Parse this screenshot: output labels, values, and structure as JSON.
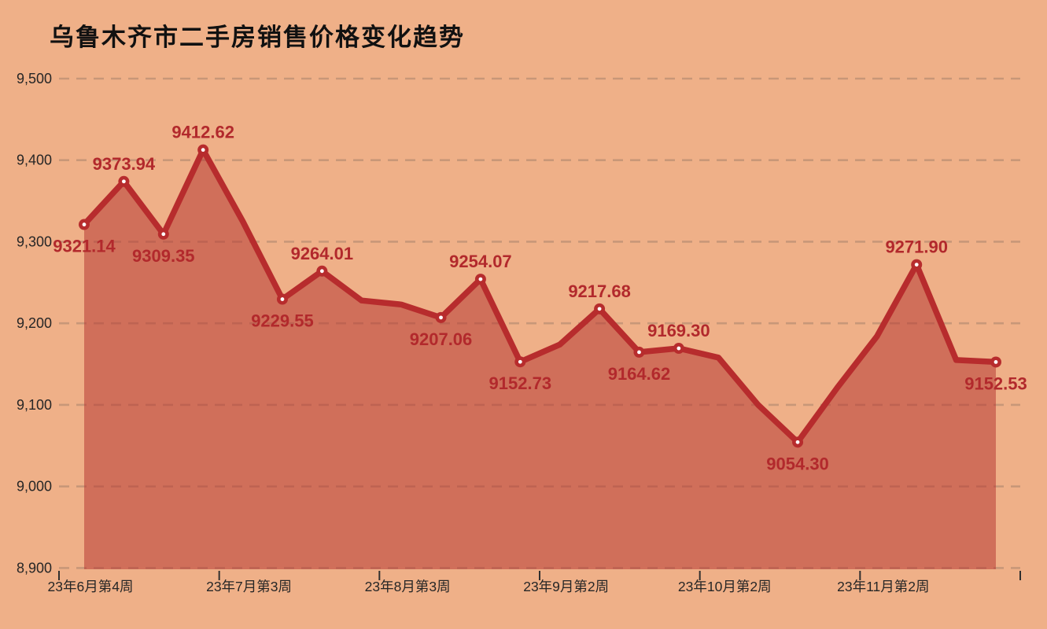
{
  "title": "乌鲁木齐市二手房销售价格变化趋势",
  "colors": {
    "background": "#efb088",
    "line": "#b72c2d",
    "area_fill": "#b5342f",
    "area_opacity": 0.52,
    "point_label": "#b2292c",
    "marker_center": "#ffffff",
    "grid": "#8a6f5f",
    "axis_text": "#262626",
    "tick": "#2f2f2f",
    "title_text": "#111111"
  },
  "chart_data": {
    "type": "area",
    "title": "乌鲁木齐市二手房销售价格变化趋势",
    "xlabel": "",
    "ylabel": "",
    "ylim": [
      8900,
      9500
    ],
    "grid": "dashed-horizontal",
    "legend": "none",
    "y_ticks": [
      {
        "label": "9,500",
        "value": 9500
      },
      {
        "label": "9,400",
        "value": 9400
      },
      {
        "label": "9,300",
        "value": 9300
      },
      {
        "label": "9,200",
        "value": 9200
      },
      {
        "label": "9,100",
        "value": 9100
      },
      {
        "label": "9,000",
        "value": 9000
      },
      {
        "label": "8,900",
        "value": 8900
      }
    ],
    "x_tick_labels": [
      "23年6月第4周",
      "23年7月第3周",
      "23年8月第3周",
      "23年9月第2周",
      "23年10月第2周",
      "23年11月第2周"
    ],
    "x_tick_point_index": [
      0,
      4,
      8,
      12,
      16,
      20
    ],
    "points": [
      {
        "value": 9321.14,
        "label": "9321.14",
        "label_pos": "below"
      },
      {
        "value": 9373.94,
        "label": "9373.94",
        "label_pos": "above"
      },
      {
        "value": 9309.35,
        "label": "9309.35",
        "label_pos": "below"
      },
      {
        "value": 9412.62,
        "label": "9412.62",
        "label_pos": "above"
      },
      {
        "value": 9325,
        "label": null,
        "label_pos": null
      },
      {
        "value": 9229.55,
        "label": "9229.55",
        "label_pos": "below"
      },
      {
        "value": 9264.01,
        "label": "9264.01",
        "label_pos": "above"
      },
      {
        "value": 9228,
        "label": null,
        "label_pos": null
      },
      {
        "value": 9223,
        "label": null,
        "label_pos": null
      },
      {
        "value": 9207.06,
        "label": "9207.06",
        "label_pos": "below"
      },
      {
        "value": 9254.07,
        "label": "9254.07",
        "label_pos": "above"
      },
      {
        "value": 9152.73,
        "label": "9152.73",
        "label_pos": "below"
      },
      {
        "value": 9174,
        "label": null,
        "label_pos": null
      },
      {
        "value": 9217.68,
        "label": "9217.68",
        "label_pos": "above"
      },
      {
        "value": 9164.62,
        "label": "9164.62",
        "label_pos": "below"
      },
      {
        "value": 9169.3,
        "label": "9169.30",
        "label_pos": "above"
      },
      {
        "value": 9158,
        "label": null,
        "label_pos": null
      },
      {
        "value": 9100,
        "label": null,
        "label_pos": null
      },
      {
        "value": 9054.3,
        "label": "9054.30",
        "label_pos": "below"
      },
      {
        "value": 9121,
        "label": null,
        "label_pos": null
      },
      {
        "value": 9184,
        "label": null,
        "label_pos": null
      },
      {
        "value": 9271.9,
        "label": "9271.90",
        "label_pos": "above"
      },
      {
        "value": 9155,
        "label": null,
        "label_pos": null
      },
      {
        "value": 9152.53,
        "label": "9152.53",
        "label_pos": "below"
      }
    ]
  }
}
